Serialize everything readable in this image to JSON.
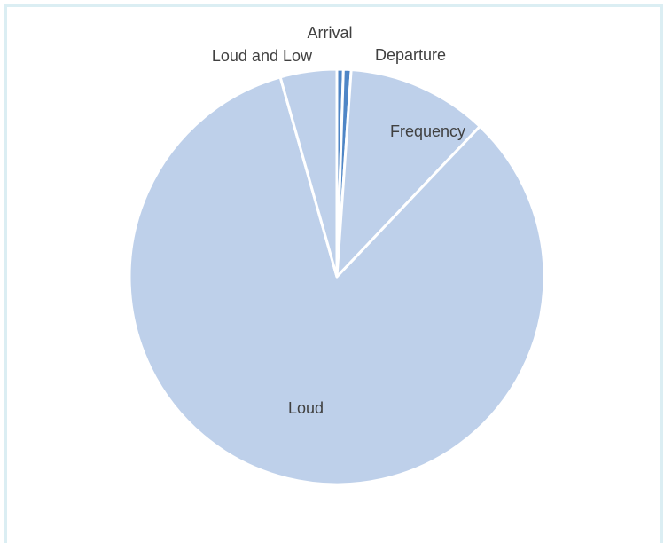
{
  "chart_data": {
    "type": "pie",
    "title": "",
    "legend": "none",
    "slices": [
      {
        "label": "Arrival",
        "value": 0.5,
        "color": "#4f86c6"
      },
      {
        "label": "Departure",
        "value": 0.6,
        "color": "#4f86c6"
      },
      {
        "label": "Frequency",
        "value": 11.0,
        "color": "#bed0ea"
      },
      {
        "label": "Loud",
        "value": 83.5,
        "color": "#bed0ea"
      },
      {
        "label": "Loud and Low",
        "value": 4.4,
        "color": "#bed0ea"
      }
    ],
    "slice_separator_color": "#ffffff"
  }
}
